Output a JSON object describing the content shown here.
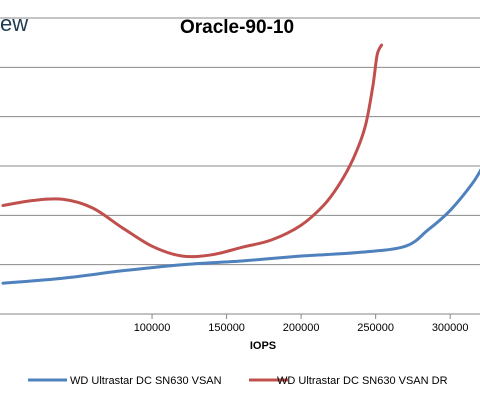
{
  "brand": {
    "text": "ew"
  },
  "chart_data": {
    "type": "line",
    "title": "Oracle-90-10",
    "xlabel": "IOPS",
    "ylabel": "",
    "xlim": [
      -2000,
      320000
    ],
    "ylim": [
      0,
      12
    ],
    "x_ticks": [
      100000,
      150000,
      200000,
      250000,
      300000
    ],
    "x_tick_labels": [
      "100000",
      "150000",
      "200000",
      "250000",
      "300000"
    ],
    "y_grid": [
      0,
      2,
      4,
      6,
      8,
      10,
      12
    ],
    "legend_position": "bottom",
    "series": [
      {
        "name": "WD Ultrastar DC SN630 VSAN",
        "color": "#4f81bd",
        "x": [
          0,
          40000,
          80000,
          120000,
          160000,
          200000,
          240000,
          270000,
          285000,
          300000,
          315000,
          322000
        ],
        "y": [
          1.25,
          1.45,
          1.75,
          2.0,
          2.15,
          2.35,
          2.5,
          2.75,
          3.4,
          4.2,
          5.3,
          6.0
        ]
      },
      {
        "name": "WD Ultrastar DC SN630 VSAN DR",
        "color": "#c0504d",
        "x": [
          0,
          20000,
          40000,
          60000,
          80000,
          100000,
          120000,
          140000,
          160000,
          180000,
          200000,
          215000,
          225000,
          235000,
          243000,
          248000,
          251000,
          254000
        ],
        "y": [
          4.4,
          4.6,
          4.65,
          4.3,
          3.5,
          2.75,
          2.35,
          2.4,
          2.7,
          3.0,
          3.6,
          4.4,
          5.2,
          6.3,
          7.6,
          9.2,
          10.5,
          10.9
        ]
      }
    ]
  }
}
